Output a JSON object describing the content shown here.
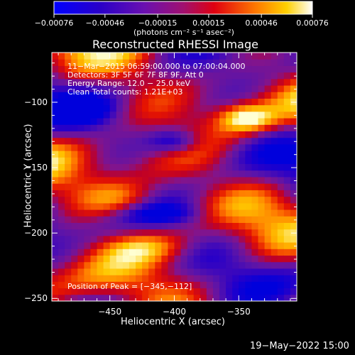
{
  "chart_data": {
    "type": "heatmap",
    "title": "Reconstructed RHESSI Image",
    "xlabel": "Heliocentric X (arcsec)",
    "ylabel": "Heliocentric Y (arcsec)",
    "xlim": [
      -495,
      -305
    ],
    "ylim": [
      -252,
      -62
    ],
    "x_ticks": [
      -450,
      -400,
      -350
    ],
    "y_ticks": [
      -100,
      -150,
      -200,
      -250
    ],
    "x_tick_labels": [
      "−450",
      "−400",
      "−350"
    ],
    "y_tick_labels": [
      "−100",
      "−150",
      "−200",
      "−250"
    ],
    "colorbar": {
      "min": -0.00076,
      "max": 0.00076,
      "tick_values": [
        -0.00076,
        -0.00046,
        -0.00015,
        0.00015,
        0.00046,
        0.00076
      ],
      "tick_labels": [
        "−0.00076",
        "−0.00046",
        "−0.00015",
        "0.00015",
        "0.00046",
        "0.00076"
      ],
      "units_label": "(photons cm⁻² s⁻¹ asec⁻²)"
    },
    "annotations": [
      "11−Mar−2015 06:59:00.000 to 07:00:04.000",
      "Detectors: 3F 5F 6F 7F 8F 9F, Att 0",
      "Energy Range: 12.0 − 25.0 keV",
      "Clean     Total counts: 1.21E+03"
    ],
    "peak_label": "Position of Peak = [−345,−112]",
    "peak_position": [
      -345,
      -112
    ],
    "date_stamp": "19−May−2022 15:00",
    "grid": false
  }
}
